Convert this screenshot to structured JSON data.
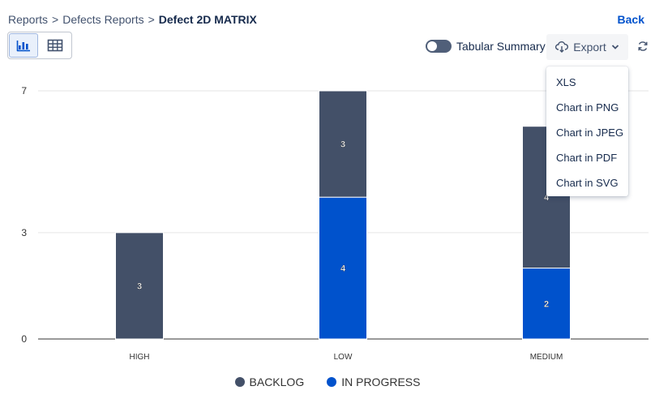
{
  "breadcrumb": {
    "items": [
      "Reports",
      "Defects Reports"
    ],
    "current": "Defect 2D MATRIX",
    "separator": ">"
  },
  "header": {
    "back_label": "Back"
  },
  "toolbar": {
    "chart_view_icon": "bar-chart-icon",
    "table_view_icon": "table-grid-icon",
    "tabular_summary_label": "Tabular Summary",
    "tabular_summary_on": false,
    "export_label": "Export"
  },
  "export_menu": {
    "items": [
      "XLS",
      "Chart in PNG",
      "Chart in JPEG",
      "Chart in PDF",
      "Chart in SVG"
    ]
  },
  "colors": {
    "backlog": "#435068",
    "in_progress": "#0052cc",
    "link": "#0052cc"
  },
  "chart_data": {
    "type": "bar",
    "stacked": true,
    "categories": [
      "HIGH",
      "LOW",
      "MEDIUM"
    ],
    "series": [
      {
        "name": "IN PROGRESS",
        "values": [
          0,
          4,
          2
        ]
      },
      {
        "name": "BACKLOG",
        "values": [
          3,
          3,
          4
        ]
      }
    ],
    "ylim": [
      0,
      7
    ],
    "yticks": [
      0,
      3,
      7
    ],
    "legend": "bottom-center",
    "grid": true
  }
}
